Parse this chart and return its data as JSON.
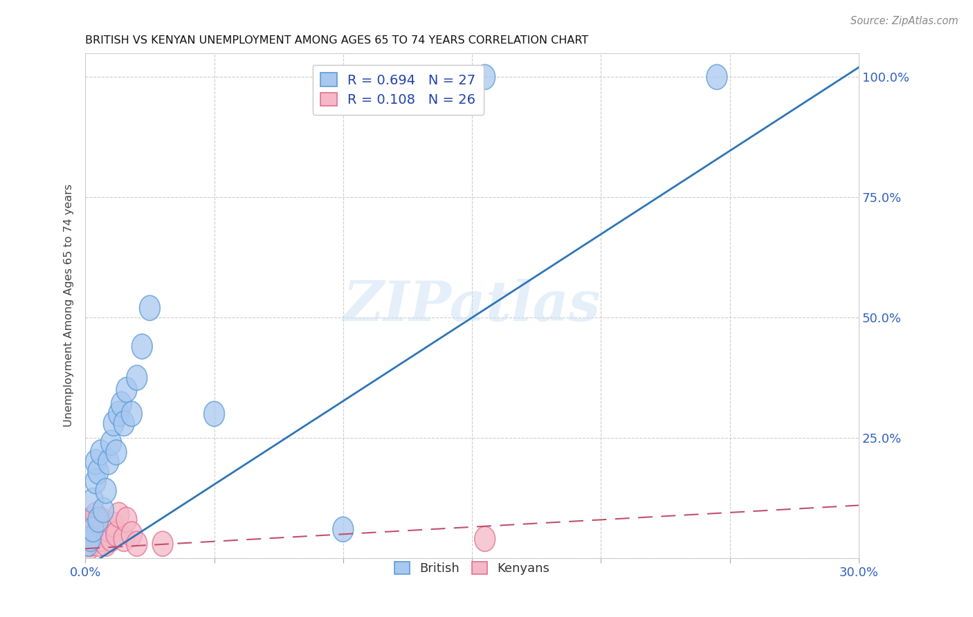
{
  "title": "BRITISH VS KENYAN UNEMPLOYMENT AMONG AGES 65 TO 74 YEARS CORRELATION CHART",
  "source": "Source: ZipAtlas.com",
  "ylabel": "Unemployment Among Ages 65 to 74 years",
  "xlim": [
    0.0,
    0.3
  ],
  "ylim": [
    0.0,
    1.05
  ],
  "british_R": "0.694",
  "british_N": "27",
  "kenyan_R": "0.108",
  "kenyan_N": "26",
  "british_color": "#a8c8f0",
  "british_edge_color": "#5b9bd5",
  "british_line_color": "#2e75b6",
  "kenyan_color": "#f4b8c8",
  "kenyan_edge_color": "#e07090",
  "kenyan_line_color": "#c0506a",
  "background_color": "#ffffff",
  "grid_color": "#c8c8c8",
  "watermark": "ZIPatlas",
  "brit_line_x0": 0.0,
  "brit_line_y0": -0.02,
  "brit_line_x1": 0.3,
  "brit_line_y1": 1.02,
  "ken_line_x0": 0.0,
  "ken_line_y0": 0.02,
  "ken_line_x1": 0.3,
  "ken_line_y1": 0.11,
  "british_x": [
    0.001,
    0.002,
    0.003,
    0.003,
    0.004,
    0.004,
    0.005,
    0.005,
    0.006,
    0.007,
    0.008,
    0.009,
    0.01,
    0.011,
    0.012,
    0.013,
    0.014,
    0.015,
    0.016,
    0.018,
    0.02,
    0.022,
    0.025,
    0.05,
    0.1,
    0.155,
    0.245
  ],
  "british_y": [
    0.03,
    0.04,
    0.06,
    0.12,
    0.16,
    0.2,
    0.18,
    0.08,
    0.22,
    0.1,
    0.14,
    0.2,
    0.24,
    0.28,
    0.22,
    0.3,
    0.32,
    0.28,
    0.35,
    0.3,
    0.375,
    0.44,
    0.52,
    0.3,
    0.06,
    1.0,
    1.0
  ],
  "kenyan_x": [
    0.001,
    0.001,
    0.002,
    0.002,
    0.003,
    0.003,
    0.004,
    0.004,
    0.005,
    0.005,
    0.006,
    0.006,
    0.007,
    0.007,
    0.008,
    0.009,
    0.01,
    0.011,
    0.012,
    0.013,
    0.015,
    0.016,
    0.018,
    0.02,
    0.03,
    0.155
  ],
  "kenyan_y": [
    0.02,
    0.06,
    0.03,
    0.08,
    0.04,
    0.07,
    0.05,
    0.09,
    0.03,
    0.06,
    0.04,
    0.08,
    0.05,
    0.07,
    0.03,
    0.06,
    0.04,
    0.07,
    0.05,
    0.09,
    0.04,
    0.08,
    0.05,
    0.03,
    0.03,
    0.04
  ]
}
